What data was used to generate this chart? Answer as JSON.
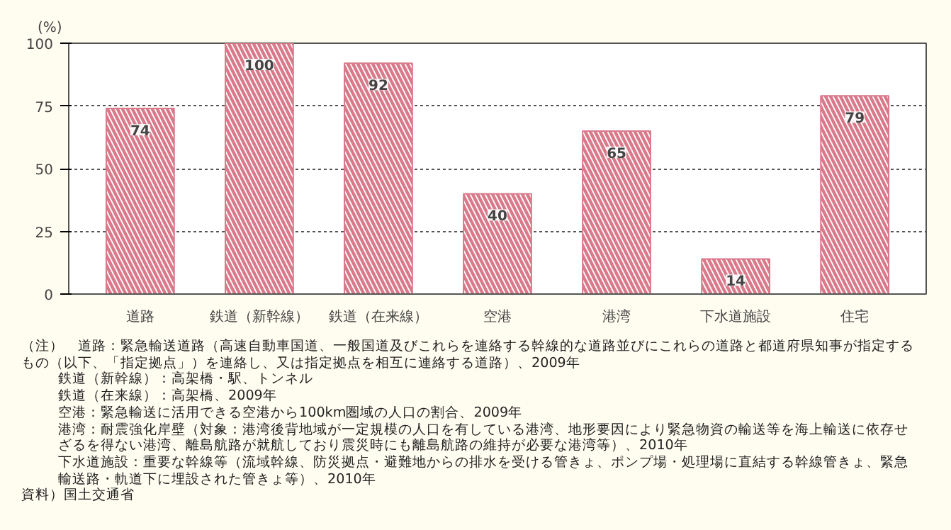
{
  "chart_data": {
    "type": "bar",
    "ylabel": "(%)",
    "categories": [
      "道路",
      "鉄道（新幹線）",
      "鉄道（在来線）",
      "空港",
      "港湾",
      "下水道施設",
      "住宅"
    ],
    "values": [
      74,
      100,
      92,
      40,
      65,
      14,
      79
    ],
    "color": "#d9798a",
    "ylim": [
      0,
      100
    ],
    "yticks": [
      0,
      25,
      50,
      75,
      100
    ],
    "grid": "y",
    "data_labels": true,
    "annotations": [
      "（注）　道路：緊急輸送道路（高速自動車国道、一般国道及びこれらを連絡する幹線的な道路並びにこれらの道路と都道府県知事が指定するもの（以下、「指定拠点」）を連絡し、又は指定拠点を相互に連絡する道路）、2009年",
      "鉄道（新幹線）：高架橋・駅、トンネル",
      "鉄道（在来線）：高架橋、2009年",
      "空港：緊急輸送に活用できる空港から100km圏域の人口の割合、2009年",
      "港湾：耐震強化岸壁（対象：港湾後背地域が一定規模の人口を有している港湾、地形要因により緊急物資の輸送等を海上輸送に依存せざるを得ない港湾、離島航路が就航しており震災時にも離島航路の維持が必要な港湾等）、2010年",
      "下水道施設：重要な幹線等（流域幹線、防災拠点・避難地からの排水を受ける管きょ、ポンプ場・処理場に直結する幹線管きょ、緊急輸送路・軌道下に埋設された管きょ等）、2010年",
      "資料）国土交通省"
    ]
  }
}
